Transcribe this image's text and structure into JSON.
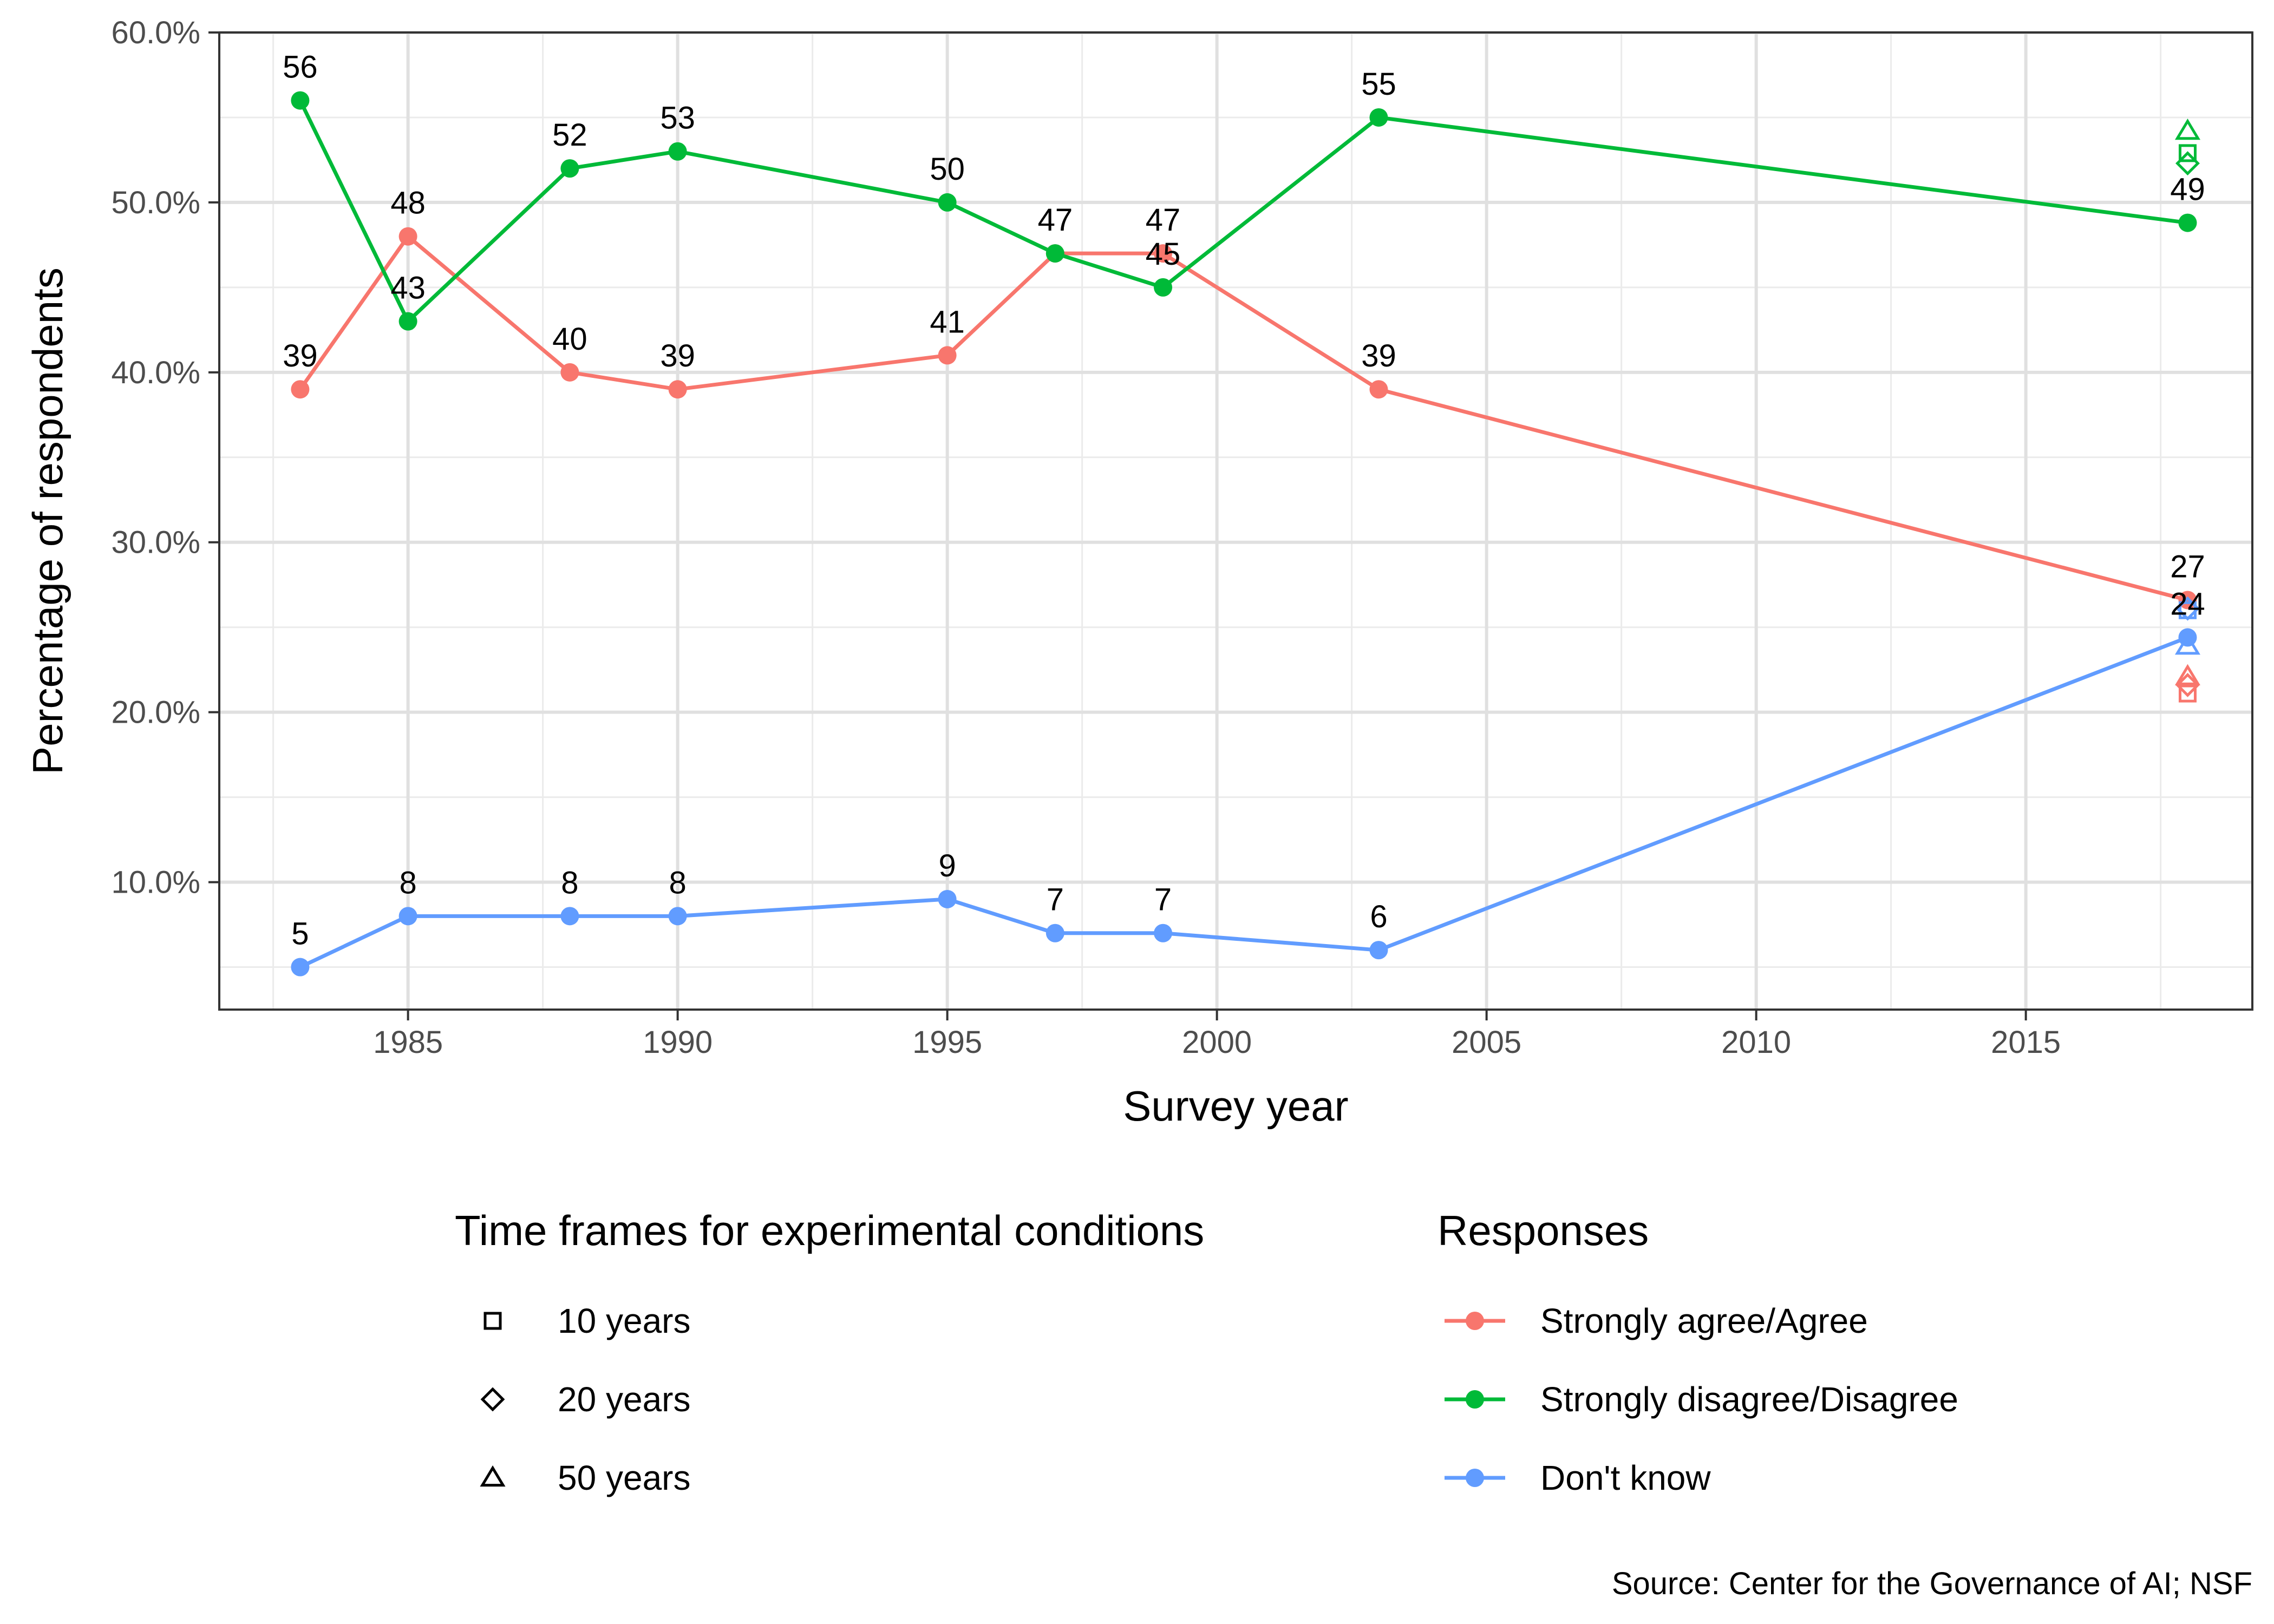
{
  "chart_data": {
    "type": "line",
    "xlabel": "Survey year",
    "ylabel": "Percentage of respondents",
    "xlim": [
      1981.5,
      2019.2
    ],
    "ylim": [
      2.5,
      60.0
    ],
    "x_ticks": [
      1985,
      1990,
      1995,
      2000,
      2005,
      2010,
      2015
    ],
    "x_tick_labels": [
      "1985",
      "1990",
      "1995",
      "2000",
      "2005",
      "2010",
      "2015"
    ],
    "y_ticks": [
      10,
      20,
      30,
      40,
      50,
      60
    ],
    "y_tick_labels": [
      "10.0%",
      "20.0%",
      "30.0%",
      "40.0%",
      "50.0%",
      "60.0%"
    ],
    "grid": true,
    "series": [
      {
        "name": "Strongly agree/Agree",
        "color": "#F8766D",
        "x": [
          1983,
          1985,
          1988,
          1990,
          1995,
          1997,
          1999,
          2003,
          2018
        ],
        "values": [
          39,
          48,
          40,
          39,
          41,
          47,
          47,
          39,
          26.6
        ],
        "labels": [
          "39",
          "48",
          "40",
          "39",
          "41",
          "47",
          "47",
          "39",
          "27"
        ]
      },
      {
        "name": "Strongly disagree/Disagree",
        "color": "#00BA38",
        "x": [
          1983,
          1985,
          1988,
          1990,
          1995,
          1997,
          1999,
          2003,
          2018
        ],
        "values": [
          56,
          43,
          52,
          53,
          50,
          47,
          45,
          55,
          48.8
        ],
        "labels": [
          "56",
          "43",
          "52",
          "53",
          "50",
          "47",
          "45",
          "55",
          "49"
        ]
      },
      {
        "name": "Don't know",
        "color": "#619CFF",
        "x": [
          1983,
          1985,
          1988,
          1990,
          1995,
          1997,
          1999,
          2003,
          2018
        ],
        "values": [
          5,
          8,
          8,
          8,
          9,
          7,
          7,
          6,
          24.4
        ],
        "labels": [
          "5",
          "8",
          "8",
          "8",
          "9",
          "7",
          "7",
          "6",
          "24"
        ]
      }
    ],
    "experimental_points": [
      {
        "x": 2018,
        "series": "Strongly disagree/Disagree",
        "shape": "square",
        "value": 52.9
      },
      {
        "x": 2018,
        "series": "Strongly disagree/Disagree",
        "shape": "diamond",
        "value": 52.3
      },
      {
        "x": 2018,
        "series": "Strongly disagree/Disagree",
        "shape": "triangle",
        "value": 54.2
      },
      {
        "x": 2018,
        "series": "Strongly agree/Agree",
        "shape": "square",
        "value": 21.1
      },
      {
        "x": 2018,
        "series": "Strongly agree/Agree",
        "shape": "diamond",
        "value": 21.6
      },
      {
        "x": 2018,
        "series": "Strongly agree/Agree",
        "shape": "triangle",
        "value": 22.1
      },
      {
        "x": 2018,
        "series": "Don't know",
        "shape": "square",
        "value": 26.0
      },
      {
        "x": 2018,
        "series": "Don't know",
        "shape": "diamond",
        "value": 26.1
      },
      {
        "x": 2018,
        "series": "Don't know",
        "shape": "triangle",
        "value": 23.9
      }
    ],
    "legends": [
      {
        "title": "Time frames for experimental conditions",
        "items": [
          {
            "label": "10 years",
            "shape": "square"
          },
          {
            "label": "20 years",
            "shape": "diamond"
          },
          {
            "label": "50 years",
            "shape": "triangle"
          }
        ]
      },
      {
        "title": "Responses",
        "items": [
          {
            "label": "Strongly agree/Agree",
            "color": "#F8766D"
          },
          {
            "label": "Strongly disagree/Disagree",
            "color": "#00BA38"
          },
          {
            "label": "Don't know",
            "color": "#619CFF"
          }
        ]
      }
    ],
    "legend_position": "bottom",
    "caption": "Source: Center for the Governance of AI; NSF"
  }
}
